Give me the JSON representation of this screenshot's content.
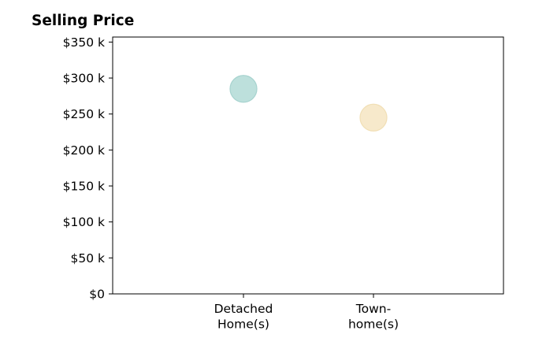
{
  "chart_data": {
    "type": "scatter",
    "title": "Selling Price",
    "categories": [
      [
        "Detached",
        "Home(s)"
      ],
      [
        "Town-",
        "home(s)"
      ]
    ],
    "values": [
      285000,
      245000
    ],
    "point_colors": [
      "#bde0dc",
      "#f7e9cb"
    ],
    "point_edge_colors": [
      "#a7d3cf",
      "#f1dfb5"
    ],
    "y_ticks": [
      0,
      50000,
      100000,
      150000,
      200000,
      250000,
      300000,
      350000
    ],
    "y_tick_labels": [
      "$0",
      "$50 k",
      "$100 k",
      "$150 k",
      "$200 k",
      "$250 k",
      "$300 k",
      "$350 k"
    ],
    "ylim": [
      0,
      357000
    ],
    "grid": false,
    "xlabel": "",
    "ylabel": ""
  }
}
